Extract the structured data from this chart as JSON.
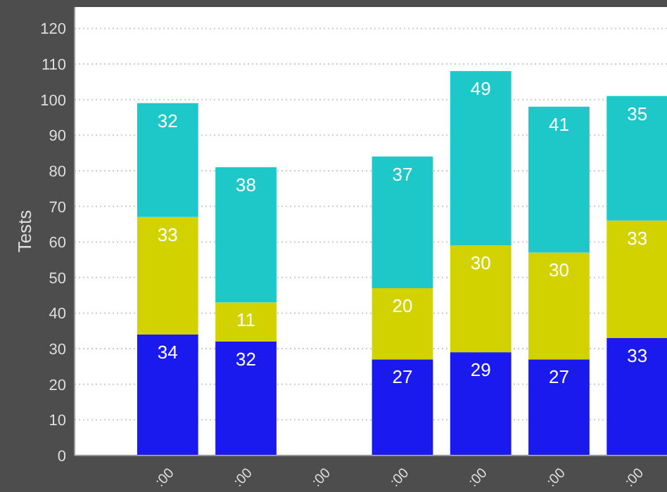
{
  "chart_data": {
    "type": "bar",
    "stacked": true,
    "ylabel": "Tests",
    "categories": [
      ":00",
      ":00",
      ":00",
      ":00",
      ":00",
      ":00",
      ":00"
    ],
    "series": [
      {
        "color": "#1a1aee",
        "values": [
          34,
          32,
          null,
          27,
          29,
          27,
          33
        ]
      },
      {
        "color": "#d2d200",
        "values": [
          33,
          11,
          null,
          20,
          30,
          30,
          33
        ]
      },
      {
        "color": "#1ec8c8",
        "values": [
          32,
          38,
          null,
          37,
          49,
          41,
          35
        ]
      }
    ],
    "ylim": [
      0,
      126
    ],
    "yticks": [
      0,
      10,
      20,
      30,
      40,
      50,
      60,
      70,
      80,
      90,
      100,
      110,
      120
    ],
    "grid": "y",
    "data_labels": true
  }
}
